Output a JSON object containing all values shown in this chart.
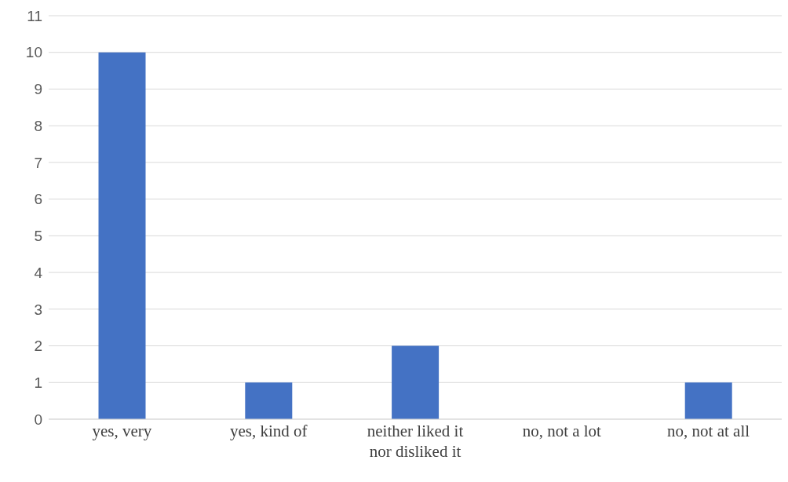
{
  "chart_data": {
    "type": "bar",
    "categories": [
      "yes, very",
      "yes, kind of",
      "neither liked it nor disliked it",
      "no, not a lot",
      "no, not at all"
    ],
    "values": [
      10,
      1,
      2,
      0,
      1
    ],
    "color": "#4472c4",
    "ylim": [
      0,
      11
    ],
    "yticks": [
      0,
      1,
      2,
      3,
      4,
      5,
      6,
      7,
      8,
      9,
      10,
      11
    ],
    "grid": "y"
  }
}
